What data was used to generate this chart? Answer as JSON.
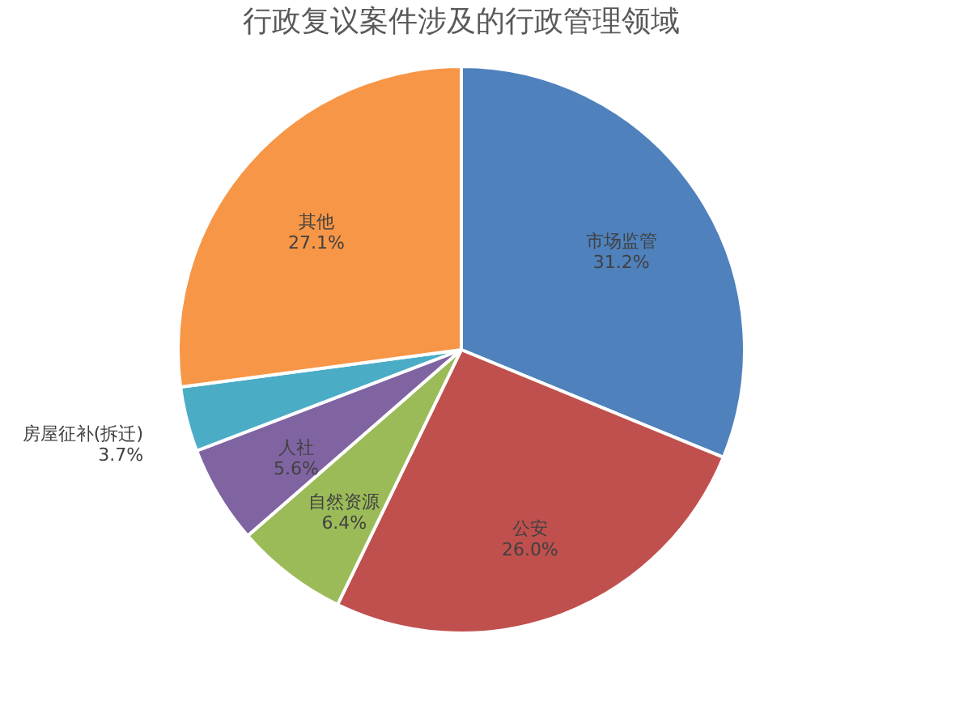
{
  "chart_data": {
    "type": "pie",
    "title": "行政复议案件涉及的行政管理领域",
    "categories": [
      "市场监管",
      "公安",
      "自然资源",
      "人社",
      "房屋征补(拆迁)",
      "其他"
    ],
    "values": [
      31.2,
      26.0,
      6.4,
      5.6,
      3.7,
      27.1
    ],
    "colors": [
      "#4f81bd",
      "#c0504d",
      "#9bbb59",
      "#8064a2",
      "#4bacc6",
      "#f79646"
    ],
    "value_labels": [
      "31.2%",
      "26.0%",
      "6.4%",
      "5.6%",
      "3.7%",
      "27.1%"
    ],
    "legend": false
  }
}
